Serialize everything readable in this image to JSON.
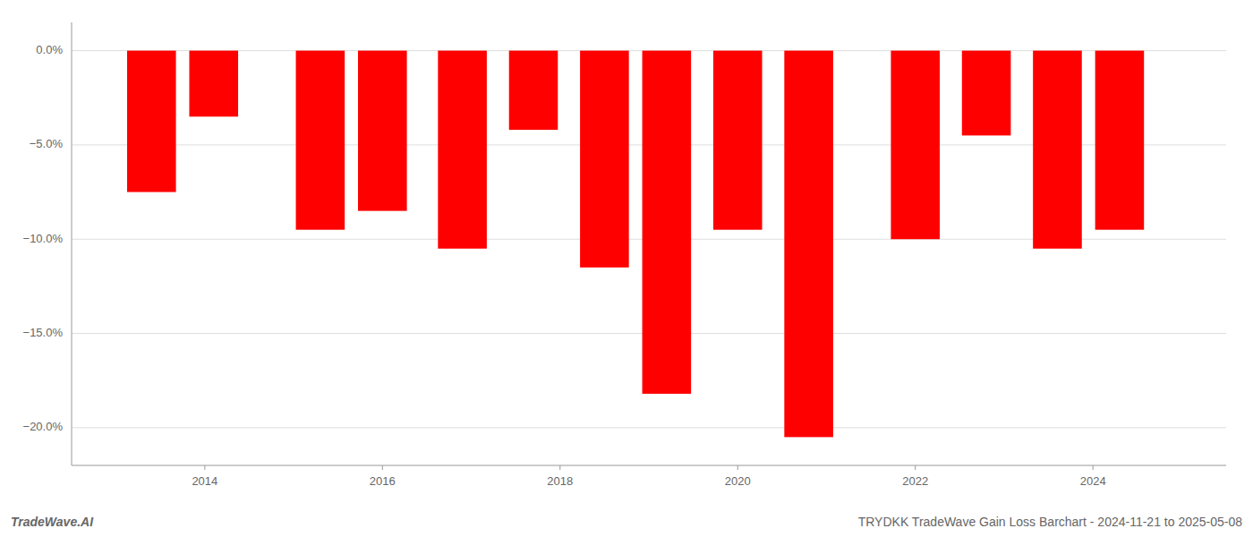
{
  "chart_data": {
    "type": "bar",
    "x": [
      2013.4,
      2014.1,
      2015.3,
      2016.0,
      2016.9,
      2017.7,
      2018.5,
      2019.2,
      2020.0,
      2020.8,
      2022.0,
      2022.8,
      2023.6,
      2024.3
    ],
    "values": [
      -7.5,
      -3.5,
      -9.5,
      -8.5,
      -10.5,
      -4.2,
      -11.5,
      -18.2,
      -9.5,
      -20.5,
      -10.0,
      -4.5,
      -10.5,
      -9.5
    ],
    "color": "#ff0000",
    "xlim": [
      2012.5,
      2025.5
    ],
    "xticks": [
      2014,
      2016,
      2018,
      2020,
      2022,
      2024
    ],
    "ylim": [
      -22,
      1.5
    ],
    "yticks": [
      {
        "value": 0.0,
        "label": "0.0%"
      },
      {
        "value": -5.0,
        "label": "−5.0%"
      },
      {
        "value": -10.0,
        "label": "−10.0%"
      },
      {
        "value": -15.0,
        "label": "−15.0%"
      },
      {
        "value": -20.0,
        "label": "−20.0%"
      }
    ],
    "grid": true,
    "annotations": [
      "TradeWave.AI",
      "TRYDKK TradeWave Gain Loss Barchart - 2024-11-21 to 2025-05-08"
    ]
  }
}
